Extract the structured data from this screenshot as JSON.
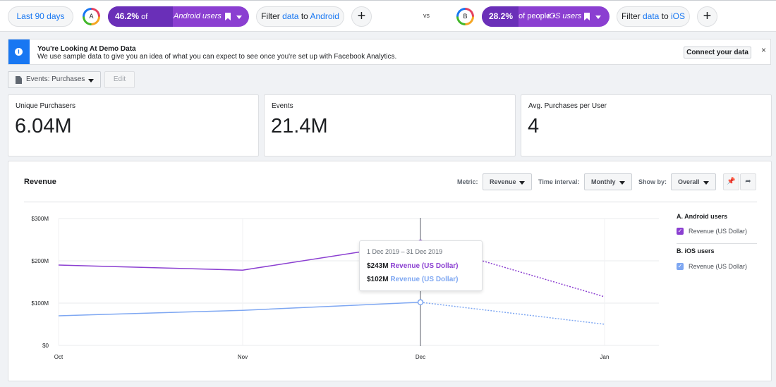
{
  "topbar": {
    "date_range": "Last 90 days",
    "segment_a": {
      "badge": "A",
      "percent": "46.2%",
      "of_people": " of people • ",
      "name": "Android users",
      "filter_prefix": "Filter ",
      "filter_data": "data",
      "filter_to": " to ",
      "filter_target": "Android"
    },
    "vs_label": "vs",
    "segment_b": {
      "badge": "B",
      "percent": "28.2%",
      "of_people": " of people • ",
      "name": "iOS users",
      "filter_prefix": "Filter ",
      "filter_data": "data",
      "filter_to": " to ",
      "filter_target": "iOS"
    },
    "add_label": "+"
  },
  "banner": {
    "info_glyph": "i",
    "title": "You're Looking At Demo Data",
    "subtitle": "We use sample data to give you an idea of what you can expect to see once you're set up with Facebook Analytics.",
    "button": "Connect your data",
    "close": "×"
  },
  "event_selector": {
    "label": "Events: Purchases",
    "edit": "Edit"
  },
  "metrics": [
    {
      "label": "Unique Purchasers",
      "value": "6.04M"
    },
    {
      "label": "Events",
      "value": "21.4M"
    },
    {
      "label": "Avg. Purchases per User",
      "value": "4"
    }
  ],
  "panel": {
    "title": "Revenue",
    "metric_label": "Metric:",
    "metric_value": "Revenue",
    "interval_label": "Time interval:",
    "interval_value": "Monthly",
    "showby_label": "Show by:",
    "showby_value": "Overall",
    "pin_glyph": "📌",
    "share_glyph": "➦"
  },
  "legend": {
    "group_a": "A. Android users",
    "item_a": "Revenue (US Dollar)",
    "group_b": "B. iOS users",
    "item_b": "Revenue (US Dollar)",
    "check": "✓"
  },
  "tooltip": {
    "date": "1 Dec 2019 – 31 Dec 2019",
    "a_value": "$243M",
    "a_name": "Revenue (US Dollar)",
    "b_value": "$102M",
    "b_name": "Revenue (US Dollar)"
  },
  "colors": {
    "android": "#8b3fd1",
    "ios": "#7ea7f2"
  },
  "chart_data": {
    "type": "line",
    "title": "Revenue",
    "categories": [
      "Oct",
      "Nov",
      "Dec",
      "Jan"
    ],
    "y_ticks": [
      "$0",
      "$100M",
      "$200M",
      "$300M"
    ],
    "ylim": [
      0,
      300
    ],
    "yunit": "$M",
    "series": [
      {
        "name": "A. Android users – Revenue (US Dollar)",
        "values": [
          190,
          178,
          243,
          115
        ],
        "projected_from_index": 2
      },
      {
        "name": "B. iOS users – Revenue (US Dollar)",
        "values": [
          70,
          83,
          102,
          50
        ],
        "projected_from_index": 2
      }
    ],
    "highlight_category": "Dec",
    "grid": true
  }
}
